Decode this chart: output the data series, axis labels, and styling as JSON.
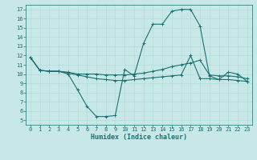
{
  "title": "",
  "xlabel": "Humidex (Indice chaleur)",
  "bg_color": "#c8e8e8",
  "line_color": "#1a7070",
  "grid_color": "#b0d8d8",
  "xlim": [
    -0.5,
    23.5
  ],
  "ylim": [
    4.5,
    17.5
  ],
  "xticks": [
    0,
    1,
    2,
    3,
    4,
    5,
    6,
    7,
    8,
    9,
    10,
    11,
    12,
    13,
    14,
    15,
    16,
    17,
    18,
    19,
    20,
    21,
    22,
    23
  ],
  "yticks": [
    5,
    6,
    7,
    8,
    9,
    10,
    11,
    12,
    13,
    14,
    15,
    16,
    17
  ],
  "line1_y": [
    11.8,
    10.4,
    10.3,
    10.3,
    10.0,
    8.3,
    6.5,
    5.4,
    5.4,
    5.5,
    10.5,
    9.8,
    13.3,
    15.4,
    15.4,
    16.8,
    17.0,
    17.0,
    15.2,
    9.8,
    9.4,
    10.2,
    10.0,
    9.2
  ],
  "line2_y": [
    11.8,
    10.4,
    10.3,
    10.3,
    10.2,
    10.0,
    10.0,
    10.0,
    9.9,
    9.9,
    9.9,
    10.0,
    10.1,
    10.3,
    10.5,
    10.8,
    11.0,
    11.2,
    11.5,
    9.9,
    9.8,
    9.8,
    9.7,
    9.5
  ],
  "line3_y": [
    11.8,
    10.4,
    10.3,
    10.3,
    10.1,
    9.9,
    9.7,
    9.5,
    9.4,
    9.3,
    9.3,
    9.4,
    9.5,
    9.6,
    9.7,
    9.8,
    9.9,
    12.0,
    9.5,
    9.5,
    9.4,
    9.4,
    9.3,
    9.2
  ],
  "tick_fontsize": 5,
  "xlabel_fontsize": 6,
  "marker_size": 3,
  "linewidth": 0.8
}
